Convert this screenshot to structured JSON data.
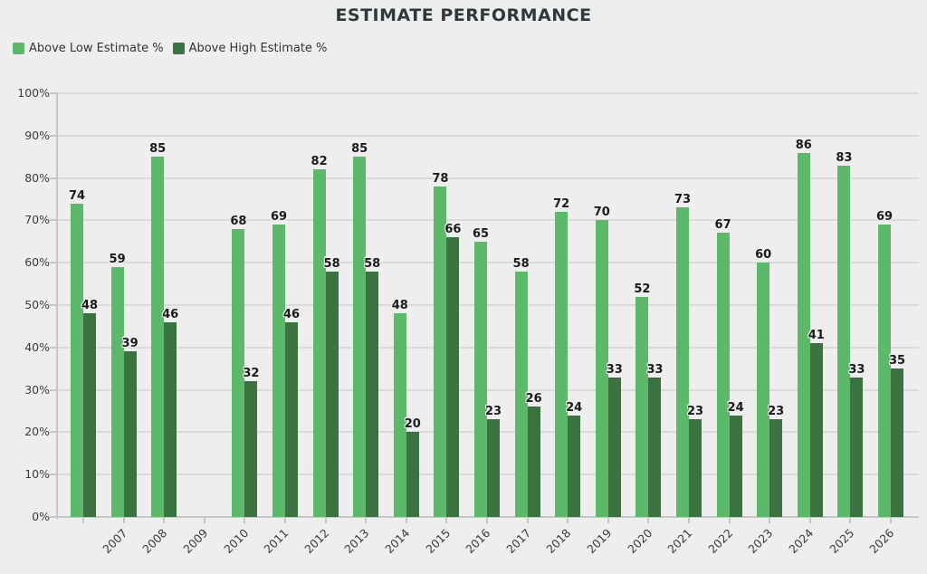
{
  "chart_data": {
    "type": "bar",
    "title": "ESTIMATE PERFORMANCE",
    "categories": [
      "",
      "2007",
      "2008",
      "2009",
      "2010",
      "2011",
      "2012",
      "2013",
      "2014",
      "2015",
      "2016",
      "2017",
      "2018",
      "2019",
      "2020",
      "2021",
      "2022",
      "2023",
      "2024",
      "2025",
      "2026"
    ],
    "series": [
      {
        "name": "Above Low Estimate %",
        "color": "#5cb96a",
        "values": [
          74,
          59,
          85,
          null,
          68,
          69,
          82,
          85,
          48,
          78,
          65,
          58,
          72,
          70,
          52,
          73,
          67,
          60,
          86,
          83,
          69
        ]
      },
      {
        "name": "Above High Estimate %",
        "color": "#3a7340",
        "values": [
          48,
          39,
          46,
          null,
          32,
          46,
          58,
          58,
          20,
          66,
          23,
          26,
          24,
          33,
          33,
          23,
          24,
          23,
          41,
          33,
          35
        ]
      }
    ],
    "ylabel": "",
    "xlabel": "",
    "ylim": [
      0,
      100
    ],
    "y_tick_labels": [
      "0%",
      "10%",
      "20%",
      "30%",
      "40%",
      "50%",
      "60%",
      "70%",
      "80%",
      "90%",
      "100%"
    ],
    "grid": true,
    "legend_position": "top-left",
    "value_labels_shown": true
  },
  "colors": {
    "background": "#eeeeee",
    "gridline": "#dadada",
    "axis": "#c6c6c6",
    "title_text": "#2f383b",
    "value_label_text": "#1b1b1b",
    "tick_label_text": "#3b3b3b",
    "legend_text": "#333333"
  }
}
